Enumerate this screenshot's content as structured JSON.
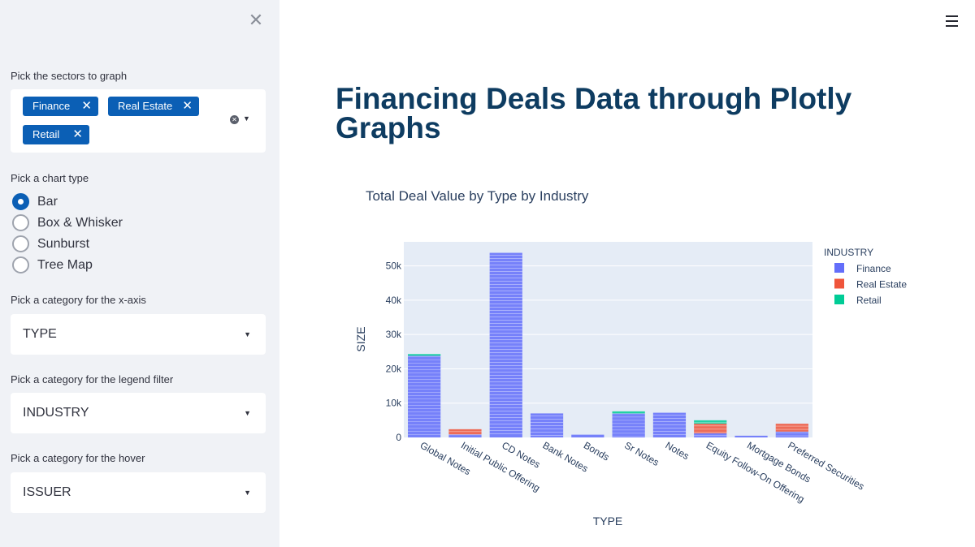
{
  "sidebar": {
    "sectors_label": "Pick the sectors to graph",
    "sector_tags": [
      "Finance",
      "Real Estate",
      "Retail"
    ],
    "chart_type_label": "Pick a chart type",
    "chart_types": [
      "Bar",
      "Box & Whisker",
      "Sunburst",
      "Tree Map"
    ],
    "chart_type_selected": "Bar",
    "xaxis_label": "Pick a category for the x-axis",
    "xaxis_value": "TYPE",
    "legend_label": "Pick a category for the legend filter",
    "legend_value": "INDUSTRY",
    "hover_label": "Pick a category for the hover",
    "hover_value": "ISSUER",
    "close_icon": "close-icon"
  },
  "main": {
    "title": "Financing Deals Data through Plotly Graphs",
    "menu_icon": "hamburger-menu-icon"
  },
  "chart_data": {
    "type": "bar",
    "title": "Total Deal Value by Type by Industry",
    "xlabel": "TYPE",
    "ylabel": "SIZE",
    "ylim": [
      0,
      57000
    ],
    "y_ticks": [
      "0",
      "10k",
      "20k",
      "30k",
      "40k",
      "50k"
    ],
    "y_tick_values": [
      0,
      10000,
      20000,
      30000,
      40000,
      50000
    ],
    "legend_title": "INDUSTRY",
    "legend_placement": "top-right",
    "categories": [
      "Global Notes",
      "Initial Public Offering",
      "CD Notes",
      "Bank Notes",
      "Bonds",
      "Sr Notes",
      "Notes",
      "Equity Follow-On Offering",
      "Mortgage Bonds",
      "Preferred Securities"
    ],
    "series": [
      {
        "name": "Finance",
        "color": "#636efa",
        "values": [
          23800,
          900,
          53800,
          7000,
          800,
          7000,
          7200,
          1200,
          500,
          1700
        ]
      },
      {
        "name": "Real Estate",
        "color": "#ef553b",
        "values": [
          0,
          1500,
          0,
          0,
          0,
          0,
          0,
          2800,
          0,
          2300
        ]
      },
      {
        "name": "Retail",
        "color": "#00cc96",
        "values": [
          500,
          0,
          0,
          0,
          0,
          600,
          0,
          1000,
          0,
          0
        ]
      }
    ]
  }
}
